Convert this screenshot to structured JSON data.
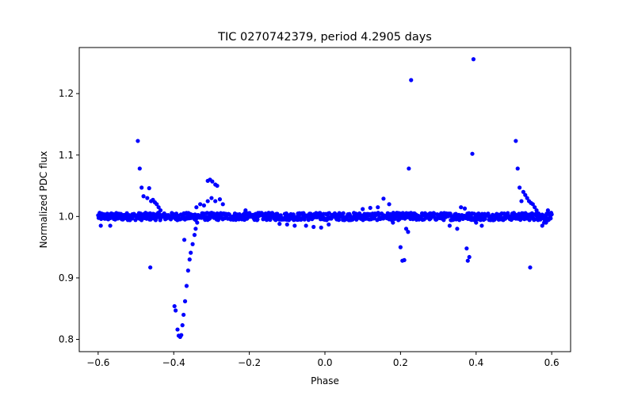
{
  "chart_data": {
    "type": "scatter",
    "title": "TIC 0270742379, period 4.2905 days",
    "xlabel": "Phase",
    "ylabel": "Normalized PDC flux",
    "xlim": [
      -0.65,
      0.65
    ],
    "ylim": [
      0.78,
      1.275
    ],
    "xticks": [
      -0.6,
      -0.4,
      -0.2,
      0.0,
      0.2,
      0.4,
      0.6
    ],
    "xtick_labels": [
      "−0.6",
      "−0.4",
      "−0.2",
      "0.0",
      "0.2",
      "0.4",
      "0.6"
    ],
    "yticks": [
      0.8,
      0.9,
      1.0,
      1.1,
      1.2
    ],
    "ytick_labels": [
      "0.8",
      "0.9",
      "1.0",
      "1.1",
      "1.2"
    ],
    "grid": false,
    "marker_color": "#0000ff",
    "baseline": {
      "x_range": [
        -0.6,
        0.6
      ],
      "center": 1.0,
      "spread": 0.006
    },
    "points": [
      [
        -0.593,
        0.985
      ],
      [
        -0.568,
        0.985
      ],
      [
        -0.555,
        0.995
      ],
      [
        -0.495,
        1.123
      ],
      [
        -0.49,
        1.078
      ],
      [
        -0.485,
        1.047
      ],
      [
        -0.48,
        1.033
      ],
      [
        -0.47,
        1.03
      ],
      [
        -0.465,
        1.046
      ],
      [
        -0.46,
        1.025
      ],
      [
        -0.455,
        1.027
      ],
      [
        -0.45,
        1.023
      ],
      [
        -0.445,
        1.02
      ],
      [
        -0.44,
        1.015
      ],
      [
        -0.435,
        1.01
      ],
      [
        -0.462,
        0.917
      ],
      [
        -0.398,
        0.854
      ],
      [
        -0.395,
        0.847
      ],
      [
        -0.39,
        0.816
      ],
      [
        -0.387,
        0.806
      ],
      [
        -0.383,
        0.804
      ],
      [
        -0.38,
        0.807
      ],
      [
        -0.377,
        0.823
      ],
      [
        -0.374,
        0.84
      ],
      [
        -0.37,
        0.862
      ],
      [
        -0.366,
        0.887
      ],
      [
        -0.362,
        0.912
      ],
      [
        -0.358,
        0.93
      ],
      [
        -0.355,
        0.941
      ],
      [
        -0.35,
        0.955
      ],
      [
        -0.345,
        0.97
      ],
      [
        -0.342,
        0.98
      ],
      [
        -0.338,
        0.99
      ],
      [
        -0.372,
        0.962
      ],
      [
        -0.31,
        1.058
      ],
      [
        -0.304,
        1.06
      ],
      [
        -0.298,
        1.057
      ],
      [
        -0.29,
        1.052
      ],
      [
        -0.285,
        1.05
      ],
      [
        -0.31,
        1.025
      ],
      [
        -0.3,
        1.03
      ],
      [
        -0.29,
        1.025
      ],
      [
        -0.278,
        1.028
      ],
      [
        -0.27,
        1.02
      ],
      [
        -0.34,
        1.015
      ],
      [
        -0.33,
        1.02
      ],
      [
        -0.32,
        1.018
      ],
      [
        -0.21,
        1.01
      ],
      [
        -0.12,
        0.988
      ],
      [
        -0.1,
        0.987
      ],
      [
        -0.08,
        0.985
      ],
      [
        -0.05,
        0.985
      ],
      [
        -0.03,
        0.983
      ],
      [
        -0.01,
        0.982
      ],
      [
        0.01,
        0.987
      ],
      [
        0.1,
        1.012
      ],
      [
        0.12,
        1.014
      ],
      [
        0.14,
        1.015
      ],
      [
        0.155,
        1.029
      ],
      [
        0.17,
        1.02
      ],
      [
        0.18,
        0.99
      ],
      [
        0.195,
        1.0
      ],
      [
        0.2,
        0.95
      ],
      [
        0.205,
        0.928
      ],
      [
        0.21,
        0.929
      ],
      [
        0.215,
        0.98
      ],
      [
        0.22,
        0.975
      ],
      [
        0.222,
        1.078
      ],
      [
        0.228,
        1.222
      ],
      [
        0.33,
        0.985
      ],
      [
        0.35,
        0.98
      ],
      [
        0.36,
        1.015
      ],
      [
        0.37,
        1.013
      ],
      [
        0.375,
        0.948
      ],
      [
        0.378,
        0.928
      ],
      [
        0.382,
        0.934
      ],
      [
        0.39,
        1.102
      ],
      [
        0.393,
        1.256
      ],
      [
        0.4,
        0.99
      ],
      [
        0.415,
        0.985
      ],
      [
        0.505,
        1.123
      ],
      [
        0.51,
        1.078
      ],
      [
        0.515,
        1.047
      ],
      [
        0.52,
        1.025
      ],
      [
        0.525,
        1.04
      ],
      [
        0.53,
        1.035
      ],
      [
        0.535,
        1.03
      ],
      [
        0.54,
        1.025
      ],
      [
        0.545,
        1.022
      ],
      [
        0.55,
        1.02
      ],
      [
        0.555,
        1.015
      ],
      [
        0.56,
        1.01
      ],
      [
        0.565,
        1.005
      ],
      [
        0.57,
        0.995
      ],
      [
        0.575,
        0.985
      ],
      [
        0.58,
        0.99
      ],
      [
        0.585,
        0.99
      ],
      [
        0.59,
        1.01
      ],
      [
        0.543,
        0.917
      ]
    ]
  }
}
